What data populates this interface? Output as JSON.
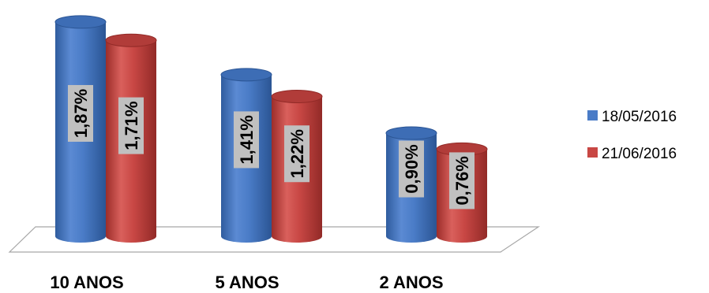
{
  "chart_data": {
    "type": "bar",
    "style": "3d-cylinder",
    "categories": [
      "10 ANOS",
      "5 ANOS",
      "2 ANOS"
    ],
    "series": [
      {
        "name": "18/05/2016",
        "values": [
          1.87,
          1.41,
          0.9
        ],
        "labels": [
          "1,87%",
          "1,41%",
          "0,90%"
        ],
        "color": "#4a7cc7"
      },
      {
        "name": "21/06/2016",
        "values": [
          1.71,
          1.22,
          0.76
        ],
        "labels": [
          "1,71%",
          "1,22%",
          "0,76%"
        ],
        "color": "#c84744"
      }
    ],
    "ylim": [
      0,
      2.0
    ],
    "grid": false,
    "legend_position": "right",
    "label_box_color": "#c0c0c0"
  }
}
